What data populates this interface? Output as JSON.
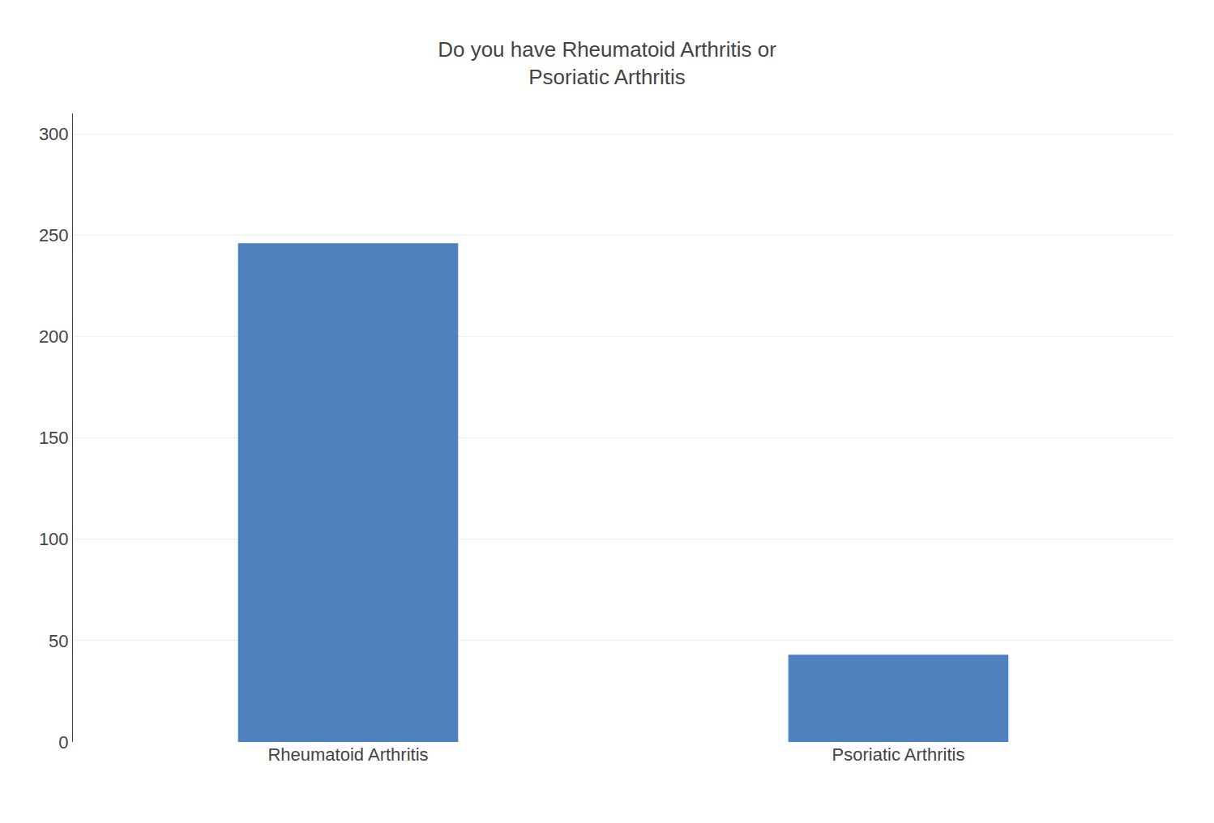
{
  "chart_data": {
    "type": "bar",
    "title": "Do you have Rheumatoid Arthritis or\nPsoriatic Arthritis",
    "categories": [
      "Rheumatoid Arthritis",
      "Psoriatic Arthritis"
    ],
    "values": [
      246,
      43
    ],
    "color": "#4f81bd",
    "ylim": [
      0,
      310
    ],
    "yticks": [
      0,
      50,
      100,
      150,
      200,
      250,
      300
    ],
    "grid": true
  }
}
